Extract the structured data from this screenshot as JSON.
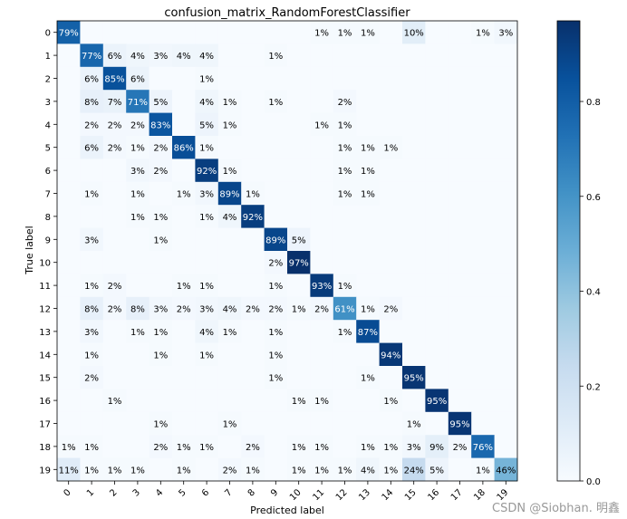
{
  "chart_data": {
    "type": "heatmap",
    "title": "confusion_matrix_RandomForestClassifier",
    "xlabel": "Predicted label",
    "ylabel": "True label",
    "x_ticks": [
      "0",
      "1",
      "2",
      "3",
      "4",
      "5",
      "6",
      "7",
      "8",
      "9",
      "10",
      "11",
      "12",
      "13",
      "14",
      "15",
      "16",
      "17",
      "18",
      "19"
    ],
    "y_ticks": [
      "0",
      "1",
      "2",
      "3",
      "4",
      "5",
      "6",
      "7",
      "8",
      "9",
      "10",
      "11",
      "12",
      "13",
      "14",
      "15",
      "16",
      "17",
      "18",
      "19"
    ],
    "colorscale": "Blues",
    "color_range": [
      0,
      0.97
    ],
    "colorbar_ticks": [
      "0.0",
      "0.2",
      "0.4",
      "0.6",
      "0.8"
    ],
    "colorbar_tick_values": [
      0,
      0.2,
      0.4,
      0.6,
      0.8
    ],
    "cells": [
      [
        0,
        0,
        79
      ],
      [
        0,
        11,
        1
      ],
      [
        0,
        12,
        1
      ],
      [
        0,
        13,
        1
      ],
      [
        0,
        15,
        10
      ],
      [
        0,
        18,
        1
      ],
      [
        0,
        19,
        3
      ],
      [
        1,
        1,
        77
      ],
      [
        1,
        2,
        6
      ],
      [
        1,
        3,
        4
      ],
      [
        1,
        4,
        3
      ],
      [
        1,
        5,
        4
      ],
      [
        1,
        6,
        4
      ],
      [
        1,
        9,
        1
      ],
      [
        2,
        1,
        6
      ],
      [
        2,
        2,
        85
      ],
      [
        2,
        3,
        6
      ],
      [
        2,
        6,
        1
      ],
      [
        3,
        1,
        8
      ],
      [
        3,
        2,
        7
      ],
      [
        3,
        3,
        71
      ],
      [
        3,
        4,
        5
      ],
      [
        3,
        6,
        4
      ],
      [
        3,
        7,
        1
      ],
      [
        3,
        9,
        1
      ],
      [
        3,
        12,
        2
      ],
      [
        4,
        1,
        2
      ],
      [
        4,
        2,
        2
      ],
      [
        4,
        3,
        2
      ],
      [
        4,
        4,
        83
      ],
      [
        4,
        6,
        5
      ],
      [
        4,
        7,
        1
      ],
      [
        4,
        11,
        1
      ],
      [
        4,
        12,
        1
      ],
      [
        5,
        1,
        6
      ],
      [
        5,
        2,
        2
      ],
      [
        5,
        3,
        1
      ],
      [
        5,
        4,
        2
      ],
      [
        5,
        5,
        86
      ],
      [
        5,
        6,
        1
      ],
      [
        5,
        12,
        1
      ],
      [
        5,
        13,
        1
      ],
      [
        5,
        14,
        1
      ],
      [
        6,
        3,
        3
      ],
      [
        6,
        4,
        2
      ],
      [
        6,
        6,
        92
      ],
      [
        6,
        7,
        1
      ],
      [
        6,
        12,
        1
      ],
      [
        6,
        13,
        1
      ],
      [
        7,
        1,
        1
      ],
      [
        7,
        3,
        1
      ],
      [
        7,
        5,
        1
      ],
      [
        7,
        6,
        3
      ],
      [
        7,
        7,
        89
      ],
      [
        7,
        8,
        1
      ],
      [
        7,
        12,
        1
      ],
      [
        7,
        13,
        1
      ],
      [
        8,
        3,
        1
      ],
      [
        8,
        4,
        1
      ],
      [
        8,
        6,
        1
      ],
      [
        8,
        7,
        4
      ],
      [
        8,
        8,
        92
      ],
      [
        9,
        1,
        3
      ],
      [
        9,
        4,
        1
      ],
      [
        9,
        9,
        89
      ],
      [
        9,
        10,
        5
      ],
      [
        10,
        9,
        2
      ],
      [
        10,
        10,
        97
      ],
      [
        11,
        1,
        1
      ],
      [
        11,
        2,
        2
      ],
      [
        11,
        5,
        1
      ],
      [
        11,
        6,
        1
      ],
      [
        11,
        9,
        1
      ],
      [
        11,
        11,
        93
      ],
      [
        11,
        12,
        1
      ],
      [
        12,
        1,
        8
      ],
      [
        12,
        2,
        2
      ],
      [
        12,
        3,
        8
      ],
      [
        12,
        4,
        3
      ],
      [
        12,
        5,
        2
      ],
      [
        12,
        6,
        3
      ],
      [
        12,
        7,
        4
      ],
      [
        12,
        8,
        2
      ],
      [
        12,
        9,
        2
      ],
      [
        12,
        10,
        1
      ],
      [
        12,
        11,
        2
      ],
      [
        12,
        12,
        61
      ],
      [
        12,
        13,
        1
      ],
      [
        12,
        14,
        2
      ],
      [
        13,
        1,
        3
      ],
      [
        13,
        3,
        1
      ],
      [
        13,
        4,
        1
      ],
      [
        13,
        6,
        4
      ],
      [
        13,
        7,
        1
      ],
      [
        13,
        9,
        1
      ],
      [
        13,
        12,
        1
      ],
      [
        13,
        13,
        87
      ],
      [
        14,
        1,
        1
      ],
      [
        14,
        4,
        1
      ],
      [
        14,
        6,
        1
      ],
      [
        14,
        9,
        1
      ],
      [
        14,
        14,
        94
      ],
      [
        15,
        1,
        2
      ],
      [
        15,
        9,
        1
      ],
      [
        15,
        13,
        1
      ],
      [
        15,
        15,
        95
      ],
      [
        16,
        2,
        1
      ],
      [
        16,
        10,
        1
      ],
      [
        16,
        11,
        1
      ],
      [
        16,
        14,
        1
      ],
      [
        16,
        16,
        95
      ],
      [
        17,
        4,
        1
      ],
      [
        17,
        7,
        1
      ],
      [
        17,
        15,
        1
      ],
      [
        17,
        17,
        95
      ],
      [
        18,
        0,
        1
      ],
      [
        18,
        1,
        1
      ],
      [
        18,
        4,
        2
      ],
      [
        18,
        5,
        1
      ],
      [
        18,
        6,
        1
      ],
      [
        18,
        8,
        2
      ],
      [
        18,
        10,
        1
      ],
      [
        18,
        11,
        1
      ],
      [
        18,
        13,
        1
      ],
      [
        18,
        14,
        1
      ],
      [
        18,
        15,
        3
      ],
      [
        18,
        16,
        9
      ],
      [
        18,
        17,
        2
      ],
      [
        18,
        18,
        76
      ],
      [
        19,
        0,
        11
      ],
      [
        19,
        1,
        1
      ],
      [
        19,
        2,
        1
      ],
      [
        19,
        3,
        1
      ],
      [
        19,
        5,
        1
      ],
      [
        19,
        7,
        2
      ],
      [
        19,
        8,
        1
      ],
      [
        19,
        10,
        1
      ],
      [
        19,
        11,
        1
      ],
      [
        19,
        12,
        1
      ],
      [
        19,
        13,
        4
      ],
      [
        19,
        14,
        1
      ],
      [
        19,
        15,
        24
      ],
      [
        19,
        16,
        5
      ],
      [
        19,
        18,
        1
      ],
      [
        19,
        19,
        46
      ]
    ],
    "value_suffix": "%"
  },
  "watermark": "CSDN @Siobhan. 明鑫"
}
